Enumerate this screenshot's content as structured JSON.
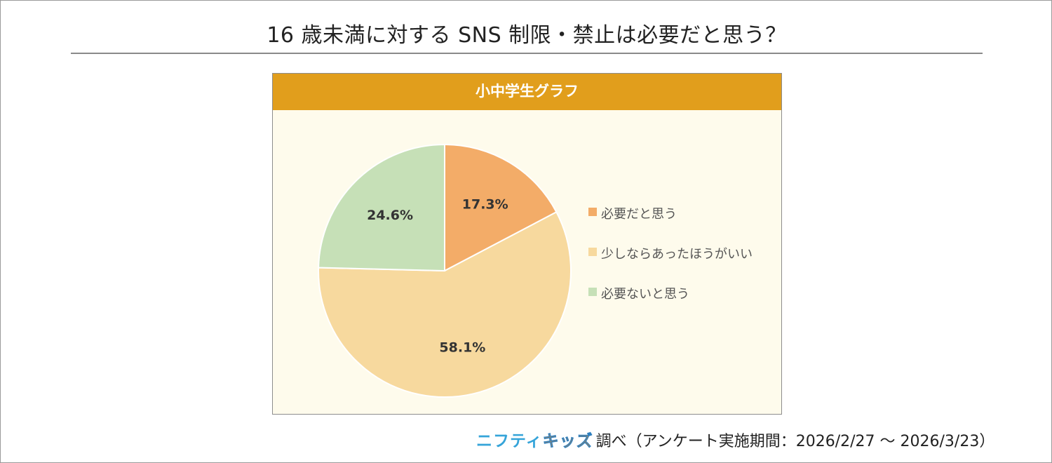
{
  "title": "16 歳未満に対する SNS 制限・禁止は必要だと思う？",
  "chart_data": {
    "type": "pie",
    "panel_title": "小中学生グラフ",
    "slices": [
      {
        "label": "必要だと思う",
        "value": 17.3,
        "value_label": "17.3%",
        "color": "#f3ac68"
      },
      {
        "label": "少しならあったほうがいい",
        "value": 58.1,
        "value_label": "58.1%",
        "color": "#f7d99e"
      },
      {
        "label": "必要ないと思う",
        "value": 24.6,
        "value_label": "24.6%",
        "color": "#c6e0b7"
      }
    ],
    "start_angle": "12 o'clock",
    "direction": "clockwise",
    "legend_position": "right"
  },
  "footer": {
    "brand_nifty": "ニフティ",
    "brand_kids": "キッズ",
    "source_text": "調べ（アンケート実施期間：2026/2/27 ～ 2026/3/23）"
  }
}
